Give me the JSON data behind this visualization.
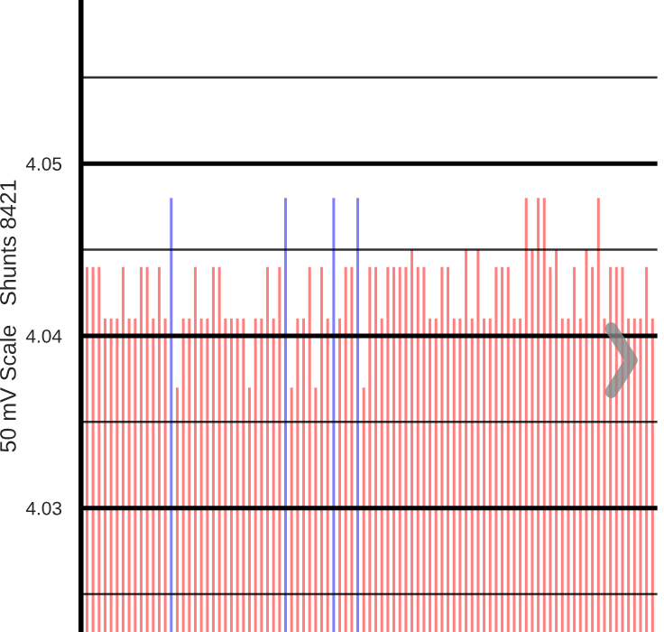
{
  "chart_data": {
    "type": "bar",
    "ylabel": "50 mV Scale   Shunts 8421",
    "categories": [
      null,
      null,
      null,
      null,
      null,
      null,
      null,
      null,
      null,
      null,
      null,
      null,
      null,
      null,
      null,
      null,
      null,
      null,
      null,
      null,
      null,
      null,
      null,
      null,
      null,
      null,
      null,
      null,
      null,
      null,
      null,
      null,
      null,
      null,
      null,
      null,
      null,
      null,
      null,
      null,
      null,
      null,
      null,
      null,
      null,
      null,
      null,
      null,
      null,
      null,
      null,
      null,
      null,
      null,
      null,
      null,
      null,
      null,
      null,
      null,
      null,
      null,
      null,
      null,
      null,
      null,
      null,
      null,
      null,
      null,
      null,
      null,
      null,
      null,
      null,
      null,
      null,
      null,
      null,
      null,
      null,
      null,
      null,
      null,
      null,
      null,
      null,
      null,
      null,
      null,
      null,
      null,
      null,
      null,
      null
    ],
    "values": [
      4.044,
      4.044,
      4.044,
      4.041,
      4.041,
      4.041,
      4.044,
      4.041,
      4.041,
      4.044,
      4.044,
      4.041,
      4.044,
      4.041,
      4.048,
      4.037,
      4.041,
      4.041,
      4.044,
      4.041,
      4.041,
      4.044,
      4.044,
      4.041,
      4.041,
      4.041,
      4.041,
      4.037,
      4.041,
      4.041,
      4.044,
      4.041,
      4.044,
      4.048,
      4.037,
      4.041,
      4.041,
      4.044,
      4.037,
      4.044,
      4.041,
      4.048,
      4.041,
      4.044,
      4.044,
      4.048,
      4.037,
      4.044,
      4.044,
      4.041,
      4.044,
      4.044,
      4.044,
      4.044,
      4.045,
      4.044,
      4.044,
      4.041,
      4.041,
      4.044,
      4.044,
      4.041,
      4.041,
      4.045,
      4.041,
      4.045,
      4.041,
      4.041,
      4.044,
      4.044,
      4.044,
      4.041,
      4.041,
      4.048,
      4.045,
      4.048,
      4.048,
      4.044,
      4.045,
      4.041,
      4.041,
      4.044,
      4.041,
      4.045,
      4.044,
      4.048,
      4.041,
      4.044,
      4.044,
      4.044,
      4.041,
      4.041,
      4.041,
      4.044,
      4.041
    ],
    "colors": [
      "#ff8080",
      "#ff8080",
      "#ff8080",
      "#ff8080",
      "#ff8080",
      "#ff8080",
      "#ff8080",
      "#ff8080",
      "#ff8080",
      "#ff8080",
      "#ff8080",
      "#ff8080",
      "#ff8080",
      "#ff8080",
      "#8080ff",
      "#ff8080",
      "#ff8080",
      "#ff8080",
      "#ff8080",
      "#ff8080",
      "#ff8080",
      "#ff8080",
      "#ff8080",
      "#ff8080",
      "#ff8080",
      "#ff8080",
      "#ff8080",
      "#ff8080",
      "#ff8080",
      "#ff8080",
      "#ff8080",
      "#ff8080",
      "#ff8080",
      "#8080ff",
      "#ff8080",
      "#ff8080",
      "#ff8080",
      "#ff8080",
      "#ff8080",
      "#ff8080",
      "#ff8080",
      "#8080ff",
      "#ff8080",
      "#ff8080",
      "#ff8080",
      "#8080ff",
      "#ff8080",
      "#ff8080",
      "#ff8080",
      "#ff8080",
      "#ff8080",
      "#ff8080",
      "#ff8080",
      "#ff8080",
      "#ff8080",
      "#ff8080",
      "#ff8080",
      "#ff8080",
      "#ff8080",
      "#ff8080",
      "#ff8080",
      "#ff8080",
      "#ff8080",
      "#ff8080",
      "#ff8080",
      "#ff8080",
      "#ff8080",
      "#ff8080",
      "#ff8080",
      "#ff8080",
      "#ff8080",
      "#ff8080",
      "#ff8080",
      "#ff8080",
      "#ff8080",
      "#ff8080",
      "#ff8080",
      "#ff8080",
      "#ff8080",
      "#ff8080",
      "#ff8080",
      "#ff8080",
      "#ff8080",
      "#ff8080",
      "#ff8080",
      "#ff8080",
      "#ff8080",
      "#ff8080",
      "#ff8080",
      "#ff8080",
      "#ff8080",
      "#ff8080",
      "#ff8080",
      "#ff8080",
      "#ff8080"
    ],
    "ylim": [
      4.0228,
      4.0595
    ],
    "yticks": [
      {
        "value": 4.025,
        "label": null
      },
      4.03,
      {
        "value": 4.035,
        "label": null
      },
      4.04,
      {
        "value": 4.045,
        "label": null
      },
      4.05,
      {
        "value": 4.055,
        "label": null
      }
    ],
    "grid": "y",
    "tick_labels": "y"
  }
}
